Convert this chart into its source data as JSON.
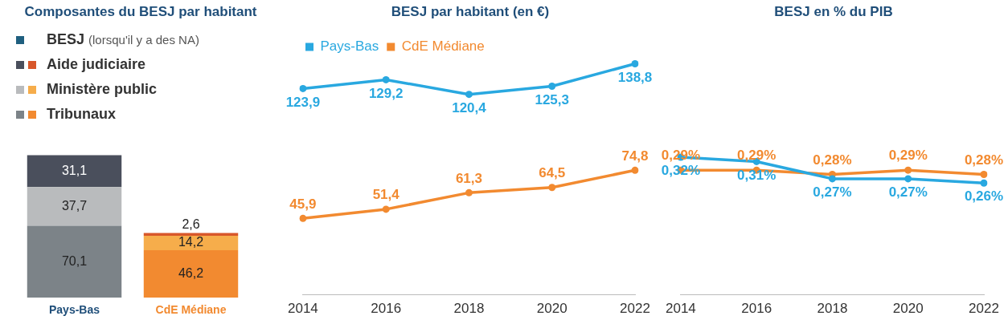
{
  "chart_data": [
    {
      "type": "bar",
      "title": "Composantes du BESJ par habitant",
      "categories": [
        "Pays-Bas",
        "CdE Médiane"
      ],
      "stacked": true,
      "legend": "top",
      "grid": false,
      "tick_labels": "x",
      "series": [
        {
          "name": "Tribunaux",
          "colors": [
            "#7c8388",
            "#f28a30"
          ],
          "values": [
            70.1,
            46.2
          ],
          "value_labels": [
            "70,1",
            "46,2"
          ]
        },
        {
          "name": "Ministère public",
          "colors": [
            "#b9bbbd",
            "#f6ad4b"
          ],
          "values": [
            37.7,
            14.2
          ],
          "value_labels": [
            "37,7",
            "14,2"
          ]
        },
        {
          "name": "Aide judiciaire",
          "colors": [
            "#4a4f5c",
            "#d8572a"
          ],
          "values": [
            31.1,
            2.6
          ],
          "value_labels": [
            "31,1",
            "2,6"
          ]
        },
        {
          "name": "BESJ (lorsqu'il y a des NA)",
          "colors": [
            "#1f5f7f",
            "#ffffff"
          ],
          "values": [
            null,
            null
          ]
        }
      ]
    },
    {
      "type": "line",
      "title": "BESJ par habitant (en €)",
      "categories": [
        "2014",
        "2016",
        "2018",
        "2020",
        "2022"
      ],
      "legend": "top left",
      "grid": false,
      "tick_labels": "x",
      "marker": "circle",
      "line_style": "solid",
      "series": [
        {
          "name": "Pays-Bas",
          "color": "#29a8e0",
          "values": [
            123.9,
            129.2,
            120.4,
            125.3,
            138.8
          ],
          "value_labels": [
            "123,9",
            "129,2",
            "120,4",
            "125,3",
            "138,8"
          ]
        },
        {
          "name": "CdE Médiane",
          "color": "#f28a30",
          "values": [
            45.9,
            51.4,
            61.3,
            64.5,
            74.8
          ],
          "value_labels": [
            "45,9",
            "51,4",
            "61,3",
            "64,5",
            "74,8"
          ]
        }
      ]
    },
    {
      "type": "line",
      "title": "BESJ en % du PIB",
      "categories": [
        "2014",
        "2016",
        "2018",
        "2020",
        "2022"
      ],
      "legend": false,
      "grid": false,
      "tick_labels": "x",
      "marker": "circle",
      "line_style": "solid",
      "series": [
        {
          "color": "#29a8e0",
          "values": [
            0.32,
            0.31,
            0.27,
            0.27,
            0.26
          ],
          "value_labels": [
            "0,32%",
            "0,31%",
            "0,27%",
            "0,27%",
            "0,26%"
          ]
        },
        {
          "color": "#f28a30",
          "values": [
            0.29,
            0.29,
            0.28,
            0.29,
            0.28
          ],
          "value_labels": [
            "0,29%",
            "0,29%",
            "0,28%",
            "0,29%",
            "0,28%"
          ]
        }
      ]
    }
  ]
}
